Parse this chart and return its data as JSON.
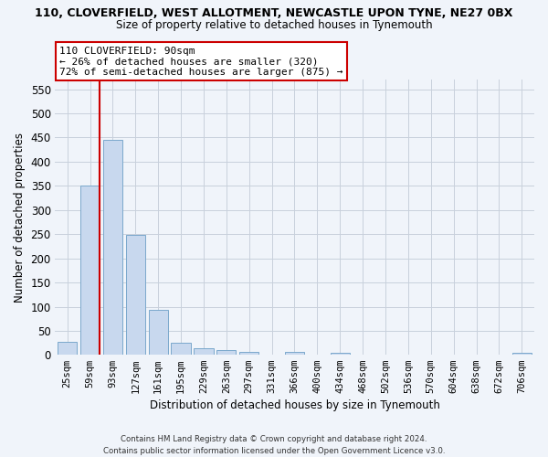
{
  "title_line1": "110, CLOVERFIELD, WEST ALLOTMENT, NEWCASTLE UPON TYNE, NE27 0BX",
  "title_line2": "Size of property relative to detached houses in Tynemouth",
  "xlabel": "Distribution of detached houses by size in Tynemouth",
  "ylabel": "Number of detached properties",
  "categories": [
    "25sqm",
    "59sqm",
    "93sqm",
    "127sqm",
    "161sqm",
    "195sqm",
    "229sqm",
    "263sqm",
    "297sqm",
    "331sqm",
    "366sqm",
    "400sqm",
    "434sqm",
    "468sqm",
    "502sqm",
    "536sqm",
    "570sqm",
    "604sqm",
    "638sqm",
    "672sqm",
    "706sqm"
  ],
  "values": [
    28,
    350,
    445,
    248,
    93,
    25,
    14,
    11,
    6,
    0,
    7,
    0,
    5,
    0,
    0,
    0,
    0,
    0,
    0,
    0,
    5
  ],
  "bar_color": "#c8d8ee",
  "bar_edge_color": "#7aa8cc",
  "redline_index": 2,
  "ylim_max": 570,
  "yticks": [
    0,
    50,
    100,
    150,
    200,
    250,
    300,
    350,
    400,
    450,
    500,
    550
  ],
  "annotation_line1": "110 CLOVERFIELD: 90sqm",
  "annotation_line2": "← 26% of detached houses are smaller (320)",
  "annotation_line3": "72% of semi-detached houses are larger (875) →",
  "footer_line1": "Contains HM Land Registry data © Crown copyright and database right 2024.",
  "footer_line2": "Contains public sector information licensed under the Open Government Licence v3.0.",
  "bg_color": "#f0f4fa",
  "grid_color": "#c8d0dc",
  "redline_color": "#cc0000",
  "ann_box_edgecolor": "#cc0000"
}
